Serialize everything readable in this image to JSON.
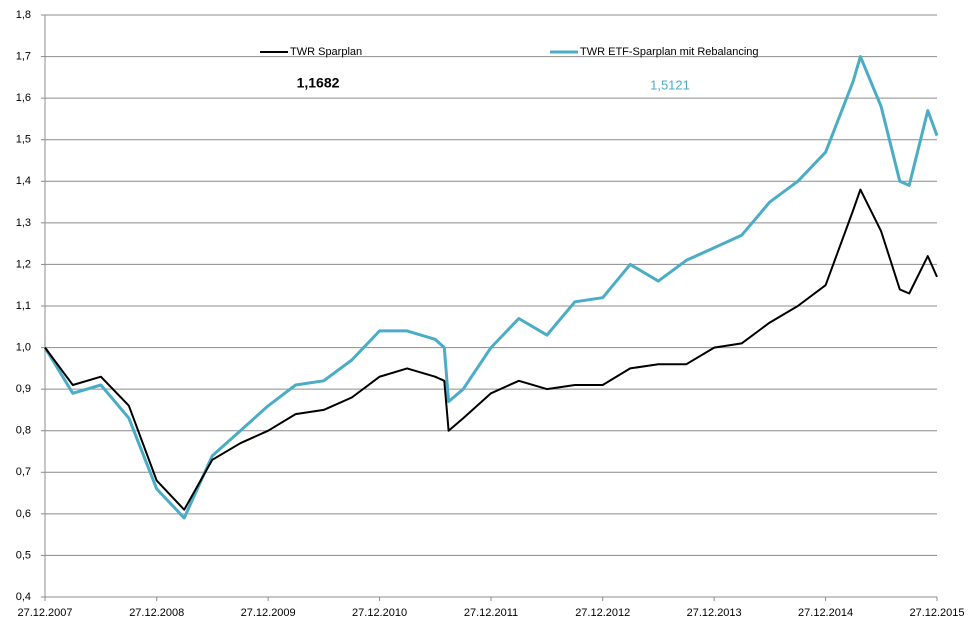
{
  "chart_data": {
    "type": "line",
    "x": [
      "2007-12-27",
      "2008-03-27",
      "2008-06-27",
      "2008-09-27",
      "2008-12-27",
      "2009-03-27",
      "2009-06-27",
      "2009-09-27",
      "2009-12-27",
      "2010-03-27",
      "2010-06-27",
      "2010-09-27",
      "2010-12-27",
      "2011-03-27",
      "2011-06-27",
      "2011-07-27",
      "2011-08-10",
      "2011-09-27",
      "2011-12-27",
      "2012-03-27",
      "2012-06-27",
      "2012-09-27",
      "2012-12-27",
      "2013-03-27",
      "2013-06-27",
      "2013-09-27",
      "2013-12-27",
      "2014-03-27",
      "2014-06-27",
      "2014-09-27",
      "2014-12-27",
      "2015-03-27",
      "2015-04-20",
      "2015-06-27",
      "2015-08-27",
      "2015-09-27",
      "2015-11-27",
      "2015-12-27"
    ],
    "series": [
      {
        "name": "TWR Sparplan",
        "color": "#000000",
        "values": [
          1.0,
          0.91,
          0.93,
          0.86,
          0.68,
          0.61,
          0.73,
          0.77,
          0.8,
          0.84,
          0.85,
          0.88,
          0.93,
          0.95,
          0.93,
          0.92,
          0.8,
          0.83,
          0.89,
          0.92,
          0.9,
          0.91,
          0.91,
          0.95,
          0.96,
          0.96,
          1.0,
          1.01,
          1.06,
          1.1,
          1.15,
          1.33,
          1.38,
          1.28,
          1.14,
          1.13,
          1.22,
          1.17
        ]
      },
      {
        "name": "TWR ETF-Sparplan mit Rebalancing",
        "color": "#4bacc6",
        "values": [
          1.0,
          0.89,
          0.91,
          0.83,
          0.66,
          0.59,
          0.74,
          0.8,
          0.86,
          0.91,
          0.92,
          0.97,
          1.04,
          1.04,
          1.02,
          1.0,
          0.87,
          0.9,
          1.0,
          1.07,
          1.03,
          1.11,
          1.12,
          1.2,
          1.16,
          1.21,
          1.24,
          1.27,
          1.35,
          1.4,
          1.47,
          1.64,
          1.7,
          1.58,
          1.4,
          1.39,
          1.57,
          1.51
        ]
      }
    ],
    "annotations": [
      {
        "text": "1,1682",
        "color": "#000000"
      },
      {
        "text": "1,5121",
        "color": "#4bacc6"
      }
    ],
    "xlim": [
      "2007-12-27",
      "2015-12-27"
    ],
    "xticks": [
      {
        "value": "2007-12-27",
        "label": "27.12.2007"
      },
      {
        "value": "2008-12-27",
        "label": "27.12.2008"
      },
      {
        "value": "2009-12-27",
        "label": "27.12.2009"
      },
      {
        "value": "2010-12-27",
        "label": "27.12.2010"
      },
      {
        "value": "2011-12-27",
        "label": "27.12.2011"
      },
      {
        "value": "2012-12-27",
        "label": "27.12.2012"
      },
      {
        "value": "2013-12-27",
        "label": "27.12.2013"
      },
      {
        "value": "2014-12-27",
        "label": "27.12.2014"
      },
      {
        "value": "2015-12-27",
        "label": "27.12.2015"
      }
    ],
    "ylim": [
      0.4,
      1.8
    ],
    "yticks": [
      {
        "value": 0.4,
        "label": "0,4"
      },
      {
        "value": 0.5,
        "label": "0,5"
      },
      {
        "value": 0.6,
        "label": "0,6"
      },
      {
        "value": 0.7,
        "label": "0,7"
      },
      {
        "value": 0.8,
        "label": "0,8"
      },
      {
        "value": 0.9,
        "label": "0,9"
      },
      {
        "value": 1.0,
        "label": "1,0"
      },
      {
        "value": 1.1,
        "label": "1,1"
      },
      {
        "value": 1.2,
        "label": "1,2"
      },
      {
        "value": 1.3,
        "label": "1,3"
      },
      {
        "value": 1.4,
        "label": "1,4"
      },
      {
        "value": 1.5,
        "label": "1,5"
      },
      {
        "value": 1.6,
        "label": "1,6"
      },
      {
        "value": 1.7,
        "label": "1,7"
      },
      {
        "value": 1.8,
        "label": "1,8"
      }
    ],
    "grid": true,
    "legend": "top"
  }
}
